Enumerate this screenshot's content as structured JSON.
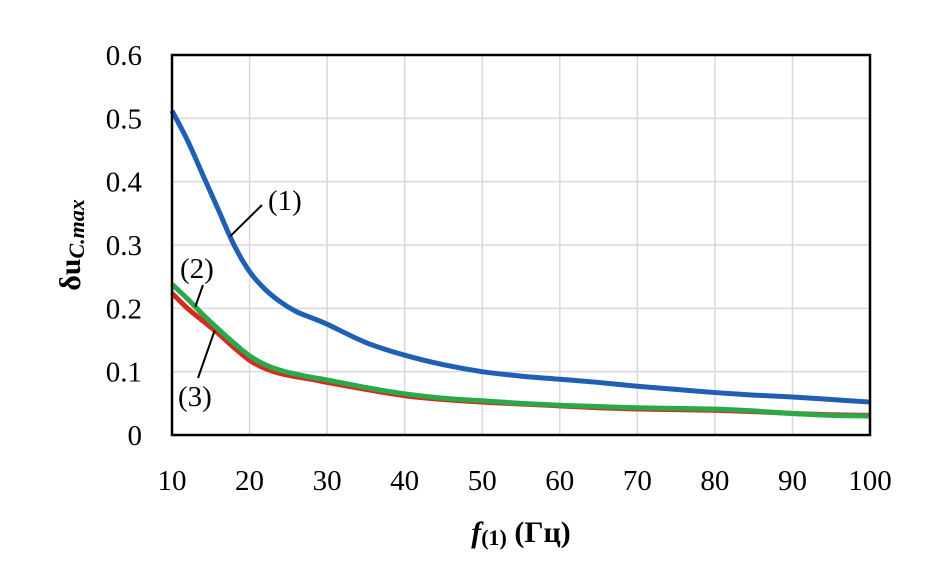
{
  "chart_data": {
    "type": "line",
    "xlabel": {
      "main": "f",
      "sub": "(1)",
      "unit": " (Гц)"
    },
    "ylabel": {
      "main": "δu",
      "sub": "C.max"
    },
    "xlim": [
      10,
      100
    ],
    "ylim": [
      0,
      0.6
    ],
    "xticks": [
      10,
      20,
      30,
      40,
      50,
      60,
      70,
      80,
      90,
      100
    ],
    "yticks": [
      0,
      0.1,
      0.2,
      0.3,
      0.4,
      0.5,
      0.6
    ],
    "ytick_labels": [
      "0",
      "0.1",
      "0.2",
      "0.3",
      "0.4",
      "0.5",
      "0.6"
    ],
    "grid": true,
    "series": [
      {
        "name": "(1)",
        "color": "#1f5fb4",
        "x": [
          10,
          12,
          14,
          16,
          18,
          20,
          22,
          24,
          26,
          28,
          30,
          35,
          40,
          45,
          50,
          55,
          60,
          65,
          70,
          75,
          80,
          85,
          90,
          95,
          100
        ],
        "y": [
          0.512,
          0.465,
          0.41,
          0.355,
          0.3,
          0.258,
          0.23,
          0.21,
          0.195,
          0.185,
          0.175,
          0.146,
          0.126,
          0.111,
          0.1,
          0.093,
          0.088,
          0.083,
          0.077,
          0.072,
          0.067,
          0.063,
          0.06,
          0.056,
          0.052
        ]
      },
      {
        "name": "(3)",
        "color": "#d62a1e",
        "x": [
          10,
          12,
          14,
          16,
          18,
          20,
          22,
          24,
          26,
          28,
          30,
          35,
          40,
          45,
          50,
          55,
          60,
          65,
          70,
          75,
          80,
          85,
          90,
          95,
          100
        ],
        "y": [
          0.224,
          0.2,
          0.18,
          0.16,
          0.138,
          0.118,
          0.105,
          0.097,
          0.092,
          0.088,
          0.083,
          0.072,
          0.062,
          0.056,
          0.052,
          0.049,
          0.046,
          0.043,
          0.041,
          0.04,
          0.039,
          0.037,
          0.034,
          0.032,
          0.031
        ]
      },
      {
        "name": "(2)",
        "color": "#2aa84a",
        "x": [
          10,
          12,
          14,
          16,
          18,
          20,
          22,
          24,
          26,
          28,
          30,
          35,
          40,
          45,
          50,
          55,
          60,
          65,
          70,
          75,
          80,
          85,
          90,
          95,
          100
        ],
        "y": [
          0.238,
          0.215,
          0.19,
          0.167,
          0.145,
          0.125,
          0.111,
          0.102,
          0.096,
          0.091,
          0.087,
          0.075,
          0.065,
          0.058,
          0.054,
          0.05,
          0.047,
          0.045,
          0.043,
          0.042,
          0.041,
          0.038,
          0.034,
          0.031,
          0.03
        ]
      }
    ],
    "annotations": [
      {
        "text": "(1)",
        "series": "(1)",
        "at_x": 17.5
      },
      {
        "text": "(2)",
        "series": "(2)",
        "at_x": 13.0
      },
      {
        "text": "(3)",
        "series": "(3)",
        "at_x": 15.5
      }
    ]
  }
}
